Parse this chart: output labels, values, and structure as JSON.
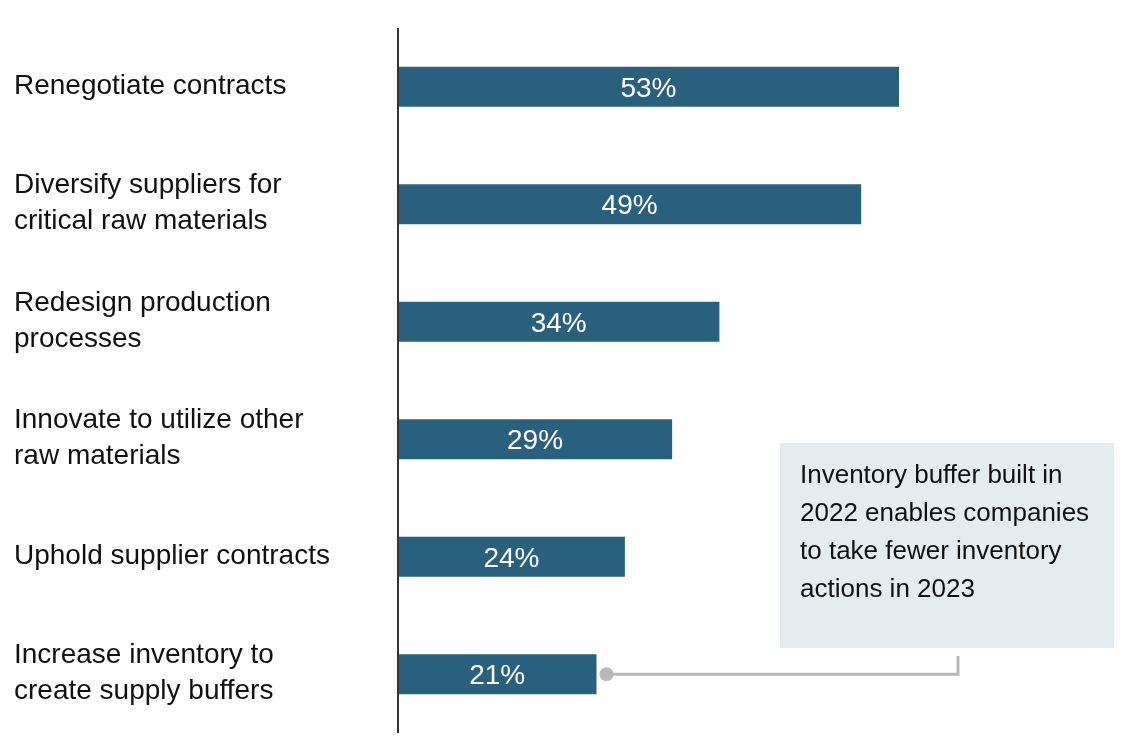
{
  "chart_data": {
    "type": "bar",
    "orientation": "horizontal",
    "tick_labels": "y",
    "categories": [
      "Renegotiate contracts",
      "Diversify suppliers for critical raw materials",
      "Redesign production processes",
      "Innovate to utilize other raw materials",
      "Uphold supplier contracts",
      "Increase inventory to create supply buffers"
    ],
    "values": [
      53,
      49,
      34,
      29,
      24,
      21
    ],
    "value_labels": [
      "53%",
      "49%",
      "34%",
      "29%",
      "24%",
      "21%"
    ],
    "color": "#28607e",
    "annotations": [
      "Inventory buffer built in 2022 enables companies to take fewer inventory actions in 2023"
    ]
  }
}
